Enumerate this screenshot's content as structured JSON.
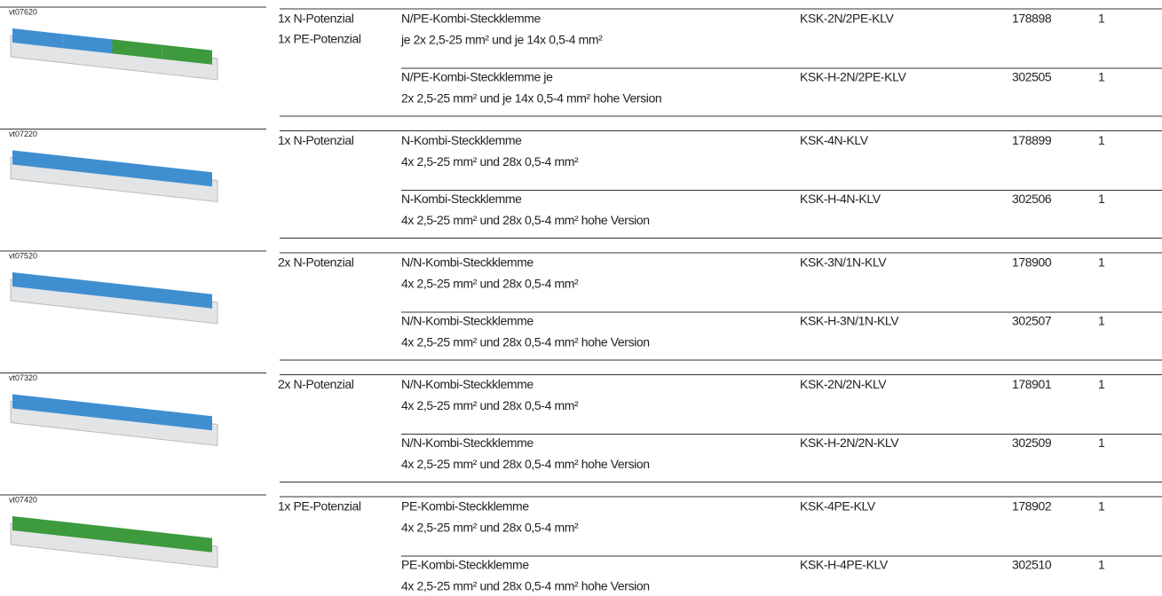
{
  "groups": [
    {
      "image_code": "vt07620",
      "potential": [
        "1x N-Potenzial",
        "1x PE-Potenzial"
      ],
      "rows": [
        {
          "description": [
            "N/PE-Kombi-Steckklemme",
            "je 2x 2,5-25 mm² und je 14x 0,5-4 mm²"
          ],
          "type": "KSK-2N/2PE-KLV",
          "article": "178898",
          "quantity": "1"
        },
        {
          "description": [
            "N/PE-Kombi-Steckklemme je",
            "2x 2,5-25 mm² und je 14x 0,5-4 mm² hohe Version"
          ],
          "type": "KSK-H-2N/2PE-KLV",
          "article": "302505",
          "quantity": "1"
        }
      ]
    },
    {
      "image_code": "vt07220",
      "potential": [
        "1x N-Potenzial"
      ],
      "rows": [
        {
          "description": [
            "N-Kombi-Steckklemme",
            "4x 2,5-25 mm² und 28x 0,5-4 mm²"
          ],
          "type": "KSK-4N-KLV",
          "article": "178899",
          "quantity": "1"
        },
        {
          "description": [
            "N-Kombi-Steckklemme",
            "4x 2,5-25 mm² und 28x 0,5-4 mm² hohe Version"
          ],
          "type": "KSK-H-4N-KLV",
          "article": "302506",
          "quantity": "1"
        }
      ]
    },
    {
      "image_code": "vt07520",
      "potential": [
        "2x N-Potenzial"
      ],
      "rows": [
        {
          "description": [
            "N/N-Kombi-Steckklemme",
            "4x 2,5-25 mm² und 28x 0,5-4 mm²"
          ],
          "type": "KSK-3N/1N-KLV",
          "article": "178900",
          "quantity": "1"
        },
        {
          "description": [
            "N/N-Kombi-Steckklemme",
            "4x 2,5-25 mm² und 28x 0,5-4 mm² hohe Version"
          ],
          "type": "KSK-H-3N/1N-KLV",
          "article": "302507",
          "quantity": "1"
        }
      ]
    },
    {
      "image_code": "vt07320",
      "potential": [
        "2x N-Potenzial"
      ],
      "rows": [
        {
          "description": [
            "N/N-Kombi-Steckklemme",
            "4x 2,5-25 mm² und 28x 0,5-4 mm²"
          ],
          "type": "KSK-2N/2N-KLV",
          "article": "178901",
          "quantity": "1"
        },
        {
          "description": [
            "N/N-Kombi-Steckklemme",
            "4x 2,5-25 mm² und 28x 0,5-4 mm² hohe Version"
          ],
          "type": "KSK-H-2N/2N-KLV",
          "article": "302509",
          "quantity": "1"
        }
      ]
    },
    {
      "image_code": "vt07420",
      "potential": [
        "1x PE-Potenzial"
      ],
      "rows": [
        {
          "description": [
            "PE-Kombi-Steckklemme",
            "4x 2,5-25 mm² und 28x 0,5-4 mm²"
          ],
          "type": "KSK-4PE-KLV",
          "article": "178902",
          "quantity": "1"
        },
        {
          "description": [
            "PE-Kombi-Steckklemme",
            "4x 2,5-25 mm² und 28x 0,5-4 mm² hohe Version"
          ],
          "type": "KSK-H-4PE-KLV",
          "article": "302510",
          "quantity": "1"
        }
      ]
    }
  ]
}
